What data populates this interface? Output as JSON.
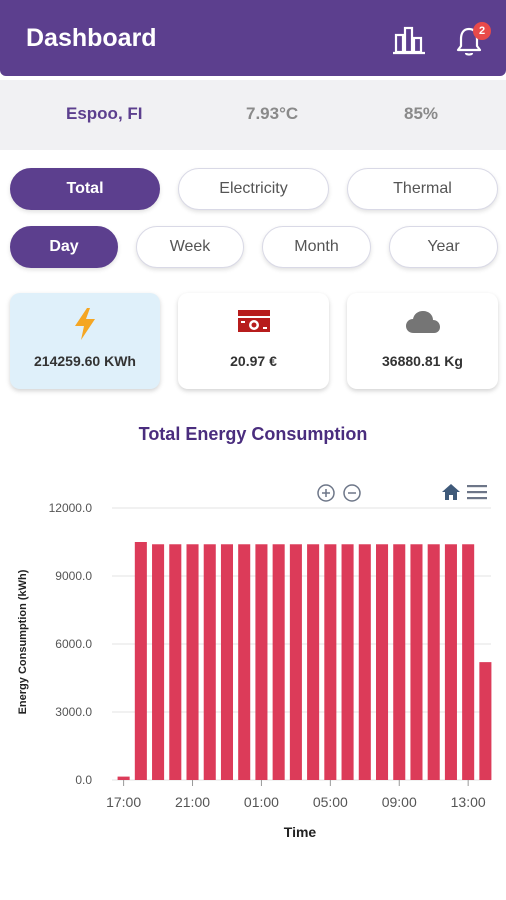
{
  "header": {
    "title": "Dashboard",
    "notification_count": "2"
  },
  "weather": {
    "location": "Espoo, FI",
    "temperature": "7.93°C",
    "humidity": "85%"
  },
  "energy_tabs": [
    {
      "label": "Total",
      "active": true
    },
    {
      "label": "Electricity",
      "active": false
    },
    {
      "label": "Thermal",
      "active": false
    }
  ],
  "period_tabs": [
    {
      "label": "Day",
      "active": true
    },
    {
      "label": "Week",
      "active": false
    },
    {
      "label": "Month",
      "active": false
    },
    {
      "label": "Year",
      "active": false
    }
  ],
  "cards": {
    "energy": {
      "value": "214259.60 KWh",
      "icon": "lightning-icon",
      "color": "#f5a623"
    },
    "cost": {
      "value": "20.97 €",
      "icon": "money-icon",
      "color": "#b71c1c"
    },
    "co2": {
      "value": "36880.81 Kg",
      "icon": "cloud-icon",
      "color": "#757575"
    }
  },
  "chart_data": {
    "type": "bar",
    "title": "Total Energy Consumption",
    "xlabel": "Time",
    "ylabel": "Energy Consumption (kWh)",
    "ylim": [
      0,
      12000
    ],
    "yticks": [
      "0.0",
      "3000.0",
      "6000.0",
      "9000.0",
      "12000.0"
    ],
    "xticks": [
      "17:00",
      "21:00",
      "01:00",
      "05:00",
      "09:00",
      "13:00"
    ],
    "categories": [
      "17:00",
      "18:00",
      "19:00",
      "20:00",
      "21:00",
      "22:00",
      "23:00",
      "00:00",
      "01:00",
      "02:00",
      "03:00",
      "04:00",
      "05:00",
      "06:00",
      "07:00",
      "08:00",
      "09:00",
      "10:00",
      "11:00",
      "12:00",
      "13:00",
      "14:00"
    ],
    "values": [
      150,
      10500,
      10400,
      10400,
      10400,
      10400,
      10400,
      10400,
      10400,
      10400,
      10400,
      10400,
      10400,
      10400,
      10400,
      10400,
      10400,
      10400,
      10400,
      10400,
      10400,
      5200
    ],
    "bar_color": "#dc3b59",
    "grid": true
  }
}
